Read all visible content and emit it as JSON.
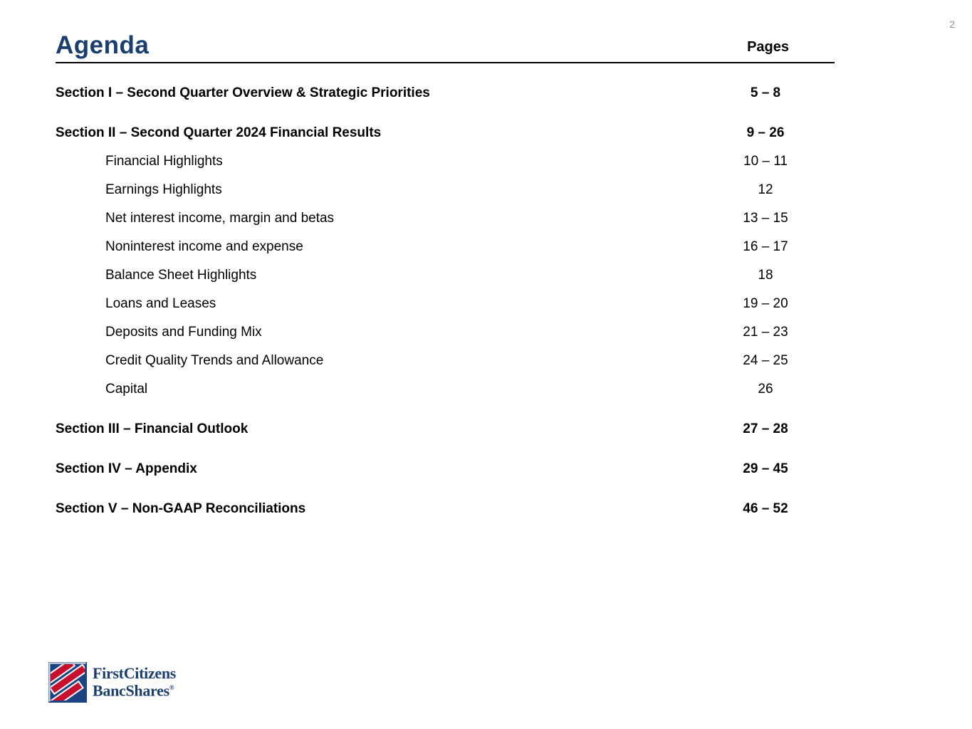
{
  "page": {
    "number": "2"
  },
  "header": {
    "title": "Agenda",
    "pages_label": "Pages"
  },
  "toc": {
    "items": [
      {
        "label": "Section I – Second Quarter Overview & Strategic Priorities",
        "pages": "5 – 8",
        "type": "section"
      },
      {
        "label": "Section II – Second Quarter 2024 Financial Results",
        "pages": "9 – 26",
        "type": "section"
      },
      {
        "label": "Financial Highlights",
        "pages": "10 – 11",
        "type": "sub"
      },
      {
        "label": "Earnings Highlights",
        "pages": "12",
        "type": "sub"
      },
      {
        "label": "Net interest income, margin and betas",
        "pages": "13 – 15",
        "type": "sub"
      },
      {
        "label": "Noninterest income and expense",
        "pages": "16 – 17",
        "type": "sub"
      },
      {
        "label": "Balance Sheet Highlights",
        "pages": "18",
        "type": "sub"
      },
      {
        "label": "Loans and Leases",
        "pages": "19 – 20",
        "type": "sub"
      },
      {
        "label": "Deposits and Funding Mix",
        "pages": "21 – 23",
        "type": "sub"
      },
      {
        "label": "Credit Quality Trends and Allowance",
        "pages": "24 – 25",
        "type": "sub"
      },
      {
        "label": "Capital",
        "pages": "26",
        "type": "sub"
      },
      {
        "label": "Section III – Financial Outlook",
        "pages": "27 – 28",
        "type": "section"
      },
      {
        "label": "Section IV – Appendix",
        "pages": "29 – 45",
        "type": "section"
      },
      {
        "label": "Section V – Non-GAAP Reconciliations",
        "pages": "46 – 52",
        "type": "section"
      }
    ]
  },
  "logo": {
    "line1": "FirstCitizens",
    "line2": "BancShares",
    "registered": "®"
  },
  "colors": {
    "title_navy": "#1a3e6e",
    "logo_navy": "#1a3e6e",
    "logo_blue_square": "#1c4484",
    "logo_red": "#c8102e",
    "page_number_gray": "#8a8c8f",
    "rule_black": "#000000"
  }
}
